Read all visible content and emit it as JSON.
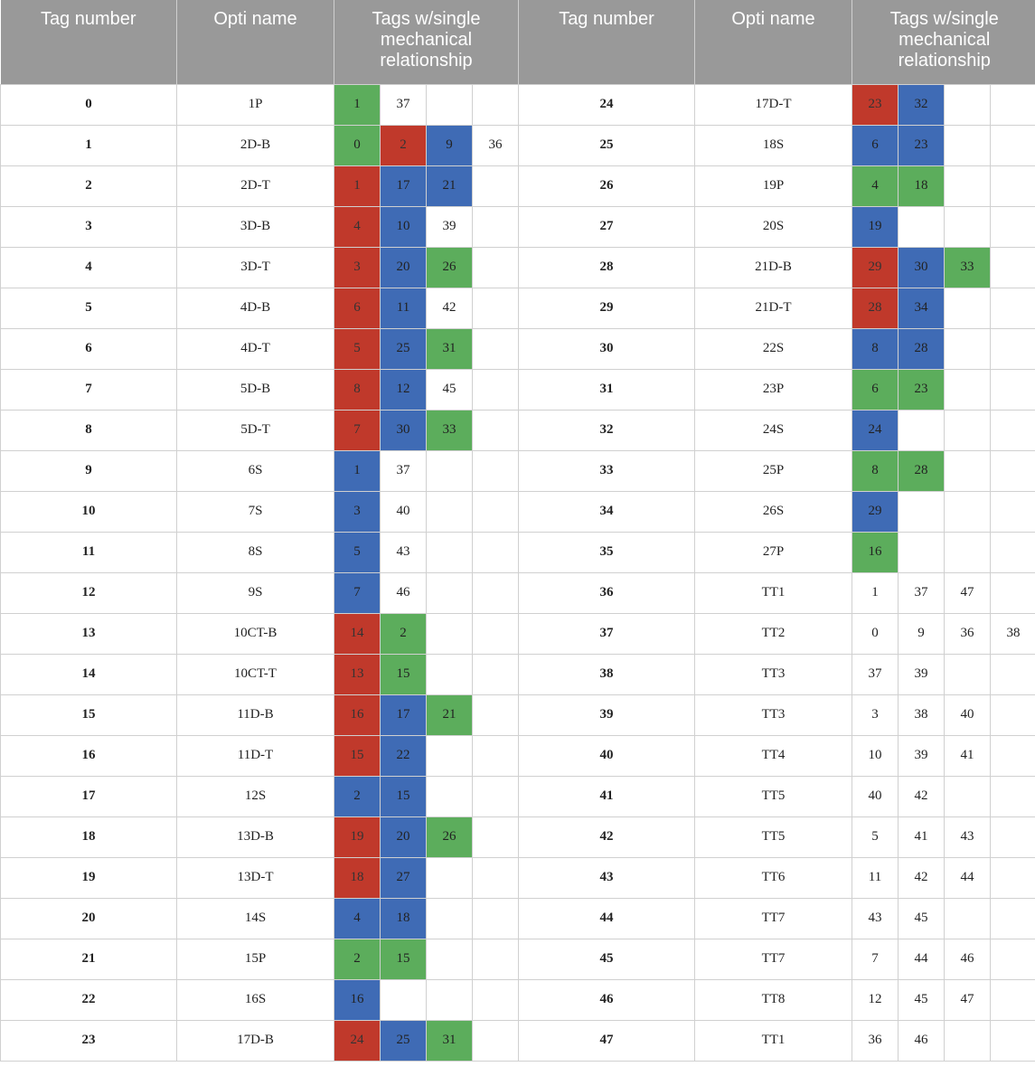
{
  "headers": {
    "tag": "Tag number",
    "opti": "Opti name",
    "rel_line1": "Tags w/single",
    "rel_line2": "mechanical",
    "rel_line3": "relationship"
  },
  "colors": {
    "red": "#c0392b",
    "blue": "#3f6bb5",
    "green": "#5cad5c"
  },
  "rows": [
    {
      "left": {
        "tag": "0",
        "name": "1P",
        "rels": [
          {
            "v": "1",
            "c": "green"
          },
          {
            "v": "37",
            "c": ""
          },
          {
            "v": "",
            "c": ""
          },
          {
            "v": "",
            "c": ""
          }
        ]
      },
      "right": {
        "tag": "24",
        "name": "17D-T",
        "rels": [
          {
            "v": "23",
            "c": "red"
          },
          {
            "v": "32",
            "c": "blue"
          },
          {
            "v": "",
            "c": ""
          },
          {
            "v": "",
            "c": ""
          }
        ]
      }
    },
    {
      "left": {
        "tag": "1",
        "name": "2D-B",
        "rels": [
          {
            "v": "0",
            "c": "green"
          },
          {
            "v": "2",
            "c": "red"
          },
          {
            "v": "9",
            "c": "blue"
          },
          {
            "v": "36",
            "c": ""
          }
        ]
      },
      "right": {
        "tag": "25",
        "name": "18S",
        "rels": [
          {
            "v": "6",
            "c": "blue"
          },
          {
            "v": "23",
            "c": "blue"
          },
          {
            "v": "",
            "c": ""
          },
          {
            "v": "",
            "c": ""
          }
        ]
      }
    },
    {
      "left": {
        "tag": "2",
        "name": "2D-T",
        "rels": [
          {
            "v": "1",
            "c": "red"
          },
          {
            "v": "17",
            "c": "blue"
          },
          {
            "v": "21",
            "c": "blue"
          },
          {
            "v": "",
            "c": ""
          }
        ]
      },
      "right": {
        "tag": "26",
        "name": "19P",
        "rels": [
          {
            "v": "4",
            "c": "green"
          },
          {
            "v": "18",
            "c": "green"
          },
          {
            "v": "",
            "c": ""
          },
          {
            "v": "",
            "c": ""
          }
        ]
      }
    },
    {
      "left": {
        "tag": "3",
        "name": "3D-B",
        "rels": [
          {
            "v": "4",
            "c": "red"
          },
          {
            "v": "10",
            "c": "blue"
          },
          {
            "v": "39",
            "c": ""
          },
          {
            "v": "",
            "c": ""
          }
        ]
      },
      "right": {
        "tag": "27",
        "name": "20S",
        "rels": [
          {
            "v": "19",
            "c": "blue"
          },
          {
            "v": "",
            "c": ""
          },
          {
            "v": "",
            "c": ""
          },
          {
            "v": "",
            "c": ""
          }
        ]
      }
    },
    {
      "left": {
        "tag": "4",
        "name": "3D-T",
        "rels": [
          {
            "v": "3",
            "c": "red"
          },
          {
            "v": "20",
            "c": "blue"
          },
          {
            "v": "26",
            "c": "green"
          },
          {
            "v": "",
            "c": ""
          }
        ]
      },
      "right": {
        "tag": "28",
        "name": "21D-B",
        "rels": [
          {
            "v": "29",
            "c": "red"
          },
          {
            "v": "30",
            "c": "blue"
          },
          {
            "v": "33",
            "c": "green"
          },
          {
            "v": "",
            "c": ""
          }
        ]
      }
    },
    {
      "left": {
        "tag": "5",
        "name": "4D-B",
        "rels": [
          {
            "v": "6",
            "c": "red"
          },
          {
            "v": "11",
            "c": "blue"
          },
          {
            "v": "42",
            "c": ""
          },
          {
            "v": "",
            "c": ""
          }
        ]
      },
      "right": {
        "tag": "29",
        "name": "21D-T",
        "rels": [
          {
            "v": "28",
            "c": "red"
          },
          {
            "v": "34",
            "c": "blue"
          },
          {
            "v": "",
            "c": ""
          },
          {
            "v": "",
            "c": ""
          }
        ]
      }
    },
    {
      "left": {
        "tag": "6",
        "name": "4D-T",
        "rels": [
          {
            "v": "5",
            "c": "red"
          },
          {
            "v": "25",
            "c": "blue"
          },
          {
            "v": "31",
            "c": "green"
          },
          {
            "v": "",
            "c": ""
          }
        ]
      },
      "right": {
        "tag": "30",
        "name": "22S",
        "rels": [
          {
            "v": "8",
            "c": "blue"
          },
          {
            "v": "28",
            "c": "blue"
          },
          {
            "v": "",
            "c": ""
          },
          {
            "v": "",
            "c": ""
          }
        ]
      }
    },
    {
      "left": {
        "tag": "7",
        "name": "5D-B",
        "rels": [
          {
            "v": "8",
            "c": "red"
          },
          {
            "v": "12",
            "c": "blue"
          },
          {
            "v": "45",
            "c": ""
          },
          {
            "v": "",
            "c": ""
          }
        ]
      },
      "right": {
        "tag": "31",
        "name": "23P",
        "rels": [
          {
            "v": "6",
            "c": "green"
          },
          {
            "v": "23",
            "c": "green"
          },
          {
            "v": "",
            "c": ""
          },
          {
            "v": "",
            "c": ""
          }
        ]
      }
    },
    {
      "left": {
        "tag": "8",
        "name": "5D-T",
        "rels": [
          {
            "v": "7",
            "c": "red"
          },
          {
            "v": "30",
            "c": "blue"
          },
          {
            "v": "33",
            "c": "green"
          },
          {
            "v": "",
            "c": ""
          }
        ]
      },
      "right": {
        "tag": "32",
        "name": "24S",
        "rels": [
          {
            "v": "24",
            "c": "blue"
          },
          {
            "v": "",
            "c": ""
          },
          {
            "v": "",
            "c": ""
          },
          {
            "v": "",
            "c": ""
          }
        ]
      }
    },
    {
      "left": {
        "tag": "9",
        "name": "6S",
        "rels": [
          {
            "v": "1",
            "c": "blue"
          },
          {
            "v": "37",
            "c": ""
          },
          {
            "v": "",
            "c": ""
          },
          {
            "v": "",
            "c": ""
          }
        ]
      },
      "right": {
        "tag": "33",
        "name": "25P",
        "rels": [
          {
            "v": "8",
            "c": "green"
          },
          {
            "v": "28",
            "c": "green"
          },
          {
            "v": "",
            "c": ""
          },
          {
            "v": "",
            "c": ""
          }
        ]
      }
    },
    {
      "left": {
        "tag": "10",
        "name": "7S",
        "rels": [
          {
            "v": "3",
            "c": "blue"
          },
          {
            "v": "40",
            "c": ""
          },
          {
            "v": "",
            "c": ""
          },
          {
            "v": "",
            "c": ""
          }
        ]
      },
      "right": {
        "tag": "34",
        "name": "26S",
        "rels": [
          {
            "v": "29",
            "c": "blue"
          },
          {
            "v": "",
            "c": ""
          },
          {
            "v": "",
            "c": ""
          },
          {
            "v": "",
            "c": ""
          }
        ]
      }
    },
    {
      "left": {
        "tag": "11",
        "name": "8S",
        "rels": [
          {
            "v": "5",
            "c": "blue"
          },
          {
            "v": "43",
            "c": ""
          },
          {
            "v": "",
            "c": ""
          },
          {
            "v": "",
            "c": ""
          }
        ]
      },
      "right": {
        "tag": "35",
        "name": "27P",
        "rels": [
          {
            "v": "16",
            "c": "green"
          },
          {
            "v": "",
            "c": ""
          },
          {
            "v": "",
            "c": ""
          },
          {
            "v": "",
            "c": ""
          }
        ]
      }
    },
    {
      "left": {
        "tag": "12",
        "name": "9S",
        "rels": [
          {
            "v": "7",
            "c": "blue"
          },
          {
            "v": "46",
            "c": ""
          },
          {
            "v": "",
            "c": ""
          },
          {
            "v": "",
            "c": ""
          }
        ]
      },
      "right": {
        "tag": "36",
        "name": "TT1",
        "rels": [
          {
            "v": "1",
            "c": ""
          },
          {
            "v": "37",
            "c": ""
          },
          {
            "v": "47",
            "c": ""
          },
          {
            "v": "",
            "c": ""
          }
        ]
      }
    },
    {
      "left": {
        "tag": "13",
        "name": "10CT-B",
        "rels": [
          {
            "v": "14",
            "c": "red"
          },
          {
            "v": "2",
            "c": "green"
          },
          {
            "v": "",
            "c": ""
          },
          {
            "v": "",
            "c": ""
          }
        ]
      },
      "right": {
        "tag": "37",
        "name": "TT2",
        "rels": [
          {
            "v": "0",
            "c": ""
          },
          {
            "v": "9",
            "c": ""
          },
          {
            "v": "36",
            "c": ""
          },
          {
            "v": "38",
            "c": ""
          }
        ]
      }
    },
    {
      "left": {
        "tag": "14",
        "name": "10CT-T",
        "rels": [
          {
            "v": "13",
            "c": "red"
          },
          {
            "v": "15",
            "c": "green"
          },
          {
            "v": "",
            "c": ""
          },
          {
            "v": "",
            "c": ""
          }
        ]
      },
      "right": {
        "tag": "38",
        "name": "TT3",
        "rels": [
          {
            "v": "37",
            "c": ""
          },
          {
            "v": "39",
            "c": ""
          },
          {
            "v": "",
            "c": ""
          },
          {
            "v": "",
            "c": ""
          }
        ]
      }
    },
    {
      "left": {
        "tag": "15",
        "name": "11D-B",
        "rels": [
          {
            "v": "16",
            "c": "red"
          },
          {
            "v": "17",
            "c": "blue"
          },
          {
            "v": "21",
            "c": "green"
          },
          {
            "v": "",
            "c": ""
          }
        ]
      },
      "right": {
        "tag": "39",
        "name": "TT3",
        "rels": [
          {
            "v": "3",
            "c": ""
          },
          {
            "v": "38",
            "c": ""
          },
          {
            "v": "40",
            "c": ""
          },
          {
            "v": "",
            "c": ""
          }
        ]
      }
    },
    {
      "left": {
        "tag": "16",
        "name": "11D-T",
        "rels": [
          {
            "v": "15",
            "c": "red"
          },
          {
            "v": "22",
            "c": "blue"
          },
          {
            "v": "",
            "c": ""
          },
          {
            "v": "",
            "c": ""
          }
        ]
      },
      "right": {
        "tag": "40",
        "name": "TT4",
        "rels": [
          {
            "v": "10",
            "c": ""
          },
          {
            "v": "39",
            "c": ""
          },
          {
            "v": "41",
            "c": ""
          },
          {
            "v": "",
            "c": ""
          }
        ]
      }
    },
    {
      "left": {
        "tag": "17",
        "name": "12S",
        "rels": [
          {
            "v": "2",
            "c": "blue"
          },
          {
            "v": "15",
            "c": "blue"
          },
          {
            "v": "",
            "c": ""
          },
          {
            "v": "",
            "c": ""
          }
        ]
      },
      "right": {
        "tag": "41",
        "name": "TT5",
        "rels": [
          {
            "v": "40",
            "c": ""
          },
          {
            "v": "42",
            "c": ""
          },
          {
            "v": "",
            "c": ""
          },
          {
            "v": "",
            "c": ""
          }
        ]
      }
    },
    {
      "left": {
        "tag": "18",
        "name": "13D-B",
        "rels": [
          {
            "v": "19",
            "c": "red"
          },
          {
            "v": "20",
            "c": "blue"
          },
          {
            "v": "26",
            "c": "green"
          },
          {
            "v": "",
            "c": ""
          }
        ]
      },
      "right": {
        "tag": "42",
        "name": "TT5",
        "rels": [
          {
            "v": "5",
            "c": ""
          },
          {
            "v": "41",
            "c": ""
          },
          {
            "v": "43",
            "c": ""
          },
          {
            "v": "",
            "c": ""
          }
        ]
      }
    },
    {
      "left": {
        "tag": "19",
        "name": "13D-T",
        "rels": [
          {
            "v": "18",
            "c": "red"
          },
          {
            "v": "27",
            "c": "blue"
          },
          {
            "v": "",
            "c": ""
          },
          {
            "v": "",
            "c": ""
          }
        ]
      },
      "right": {
        "tag": "43",
        "name": "TT6",
        "rels": [
          {
            "v": "11",
            "c": ""
          },
          {
            "v": "42",
            "c": ""
          },
          {
            "v": "44",
            "c": ""
          },
          {
            "v": "",
            "c": ""
          }
        ]
      }
    },
    {
      "left": {
        "tag": "20",
        "name": "14S",
        "rels": [
          {
            "v": "4",
            "c": "blue"
          },
          {
            "v": "18",
            "c": "blue"
          },
          {
            "v": "",
            "c": ""
          },
          {
            "v": "",
            "c": ""
          }
        ]
      },
      "right": {
        "tag": "44",
        "name": "TT7",
        "rels": [
          {
            "v": "43",
            "c": ""
          },
          {
            "v": "45",
            "c": ""
          },
          {
            "v": "",
            "c": ""
          },
          {
            "v": "",
            "c": ""
          }
        ]
      }
    },
    {
      "left": {
        "tag": "21",
        "name": "15P",
        "rels": [
          {
            "v": "2",
            "c": "green"
          },
          {
            "v": "15",
            "c": "green"
          },
          {
            "v": "",
            "c": ""
          },
          {
            "v": "",
            "c": ""
          }
        ]
      },
      "right": {
        "tag": "45",
        "name": "TT7",
        "rels": [
          {
            "v": "7",
            "c": ""
          },
          {
            "v": "44",
            "c": ""
          },
          {
            "v": "46",
            "c": ""
          },
          {
            "v": "",
            "c": ""
          }
        ]
      }
    },
    {
      "left": {
        "tag": "22",
        "name": "16S",
        "rels": [
          {
            "v": "16",
            "c": "blue"
          },
          {
            "v": "",
            "c": ""
          },
          {
            "v": "",
            "c": ""
          },
          {
            "v": "",
            "c": ""
          }
        ]
      },
      "right": {
        "tag": "46",
        "name": "TT8",
        "rels": [
          {
            "v": "12",
            "c": ""
          },
          {
            "v": "45",
            "c": ""
          },
          {
            "v": "47",
            "c": ""
          },
          {
            "v": "",
            "c": ""
          }
        ]
      }
    },
    {
      "left": {
        "tag": "23",
        "name": "17D-B",
        "rels": [
          {
            "v": "24",
            "c": "red"
          },
          {
            "v": "25",
            "c": "blue"
          },
          {
            "v": "31",
            "c": "green"
          },
          {
            "v": "",
            "c": ""
          }
        ]
      },
      "right": {
        "tag": "47",
        "name": "TT1",
        "rels": [
          {
            "v": "36",
            "c": ""
          },
          {
            "v": "46",
            "c": ""
          },
          {
            "v": "",
            "c": ""
          },
          {
            "v": "",
            "c": ""
          }
        ]
      }
    }
  ]
}
